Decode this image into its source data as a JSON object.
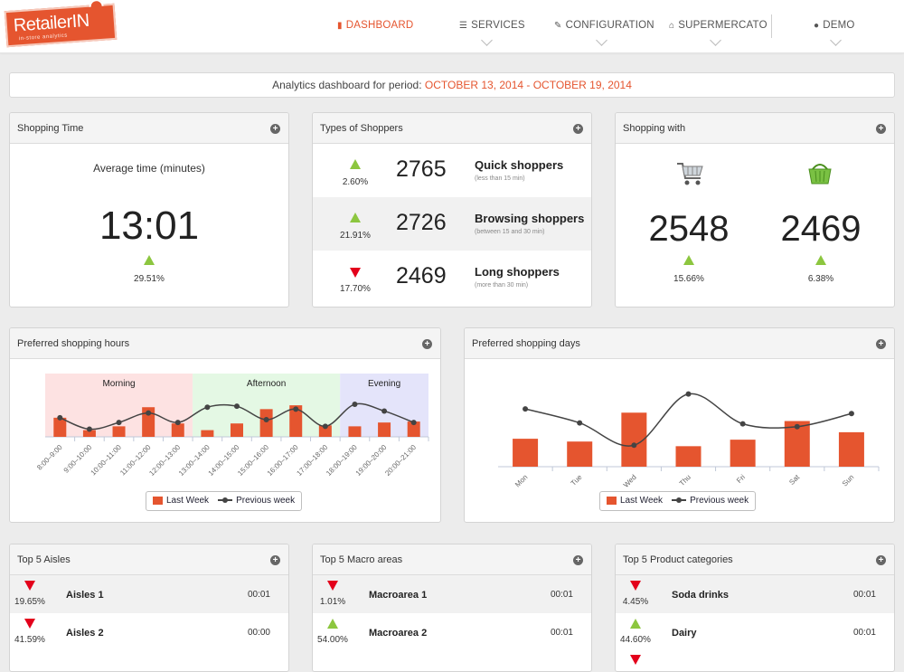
{
  "colors": {
    "accent": "#e5552f",
    "up": "#8cc63f",
    "down": "#e3001b",
    "line": "#444444"
  },
  "brand": {
    "name": "RetailerIN",
    "tagline": "in-store analytics"
  },
  "nav": {
    "dashboard": "DASHBOARD",
    "services": "SERVICES",
    "configuration": "CONFIGURATION",
    "store": "SUPERMERCATO",
    "user": "DEMO"
  },
  "period": {
    "label": "Analytics dashboard for period:",
    "dates": "OCTOBER 13, 2014 - OCTOBER 19, 2014"
  },
  "shopping_time": {
    "title": "Shopping Time",
    "label": "Average time (minutes)",
    "value": "13:01",
    "change": "29.51%",
    "trend": "up"
  },
  "shopper_types": {
    "title": "Types of Shoppers",
    "rows": [
      {
        "change": "2.60%",
        "trend": "up",
        "count": "2765",
        "name": "Quick shoppers",
        "desc": "(less than 15 min)"
      },
      {
        "change": "21.91%",
        "trend": "up",
        "count": "2726",
        "name": "Browsing shoppers",
        "desc": "(between 15 and 30 min)"
      },
      {
        "change": "17.70%",
        "trend": "down",
        "count": "2469",
        "name": "Long shoppers",
        "desc": "(more than 30 min)"
      }
    ]
  },
  "shopping_with": {
    "title": "Shopping with",
    "items": [
      {
        "icon": "shopping-cart-icon",
        "count": "2548",
        "change": "15.66%",
        "trend": "up"
      },
      {
        "icon": "shopping-basket-icon",
        "count": "2469",
        "change": "6.38%",
        "trend": "up"
      }
    ]
  },
  "hours_chart": {
    "title": "Preferred shopping hours",
    "legend": {
      "bars": "Last Week",
      "line": "Previous week"
    }
  },
  "days_chart": {
    "title": "Preferred shopping days",
    "legend": {
      "bars": "Last Week",
      "line": "Previous week"
    }
  },
  "chart_data": [
    {
      "type": "bar",
      "title": "Preferred shopping hours",
      "categories": [
        "8:00–9:00",
        "9:00–10:00",
        "10:00–11:00",
        "11:00–12:00",
        "12:00–13:00",
        "13:00–14:00",
        "14:00–15:00",
        "15:00–16:00",
        "16:00–17:00",
        "17:00–18:00",
        "18:00–19:00",
        "19:00–20:00",
        "20:00–21:00"
      ],
      "bands": [
        {
          "label": "Morning",
          "from": 0,
          "to": 5,
          "color": "#fde2e2"
        },
        {
          "label": "Afternoon",
          "from": 5,
          "to": 10,
          "color": "#e4f8e4"
        },
        {
          "label": "Evening",
          "from": 10,
          "to": 13,
          "color": "#e4e4fa"
        }
      ],
      "series": [
        {
          "name": "Last Week",
          "kind": "bar",
          "values": [
            20,
            7,
            11,
            31,
            14,
            7,
            14,
            29,
            33,
            12,
            11,
            15,
            16
          ]
        },
        {
          "name": "Previous week",
          "kind": "line",
          "values": [
            20,
            8,
            15,
            25,
            15,
            31,
            32,
            18,
            29,
            11,
            34,
            27,
            15
          ]
        }
      ],
      "ylim": [
        0,
        70
      ]
    },
    {
      "type": "bar",
      "title": "Preferred shopping days",
      "categories": [
        "Mon",
        "Tue",
        "Wed",
        "Thu",
        "Fri",
        "Sat",
        "Sun"
      ],
      "series": [
        {
          "name": "Last Week",
          "kind": "bar",
          "values": [
            30,
            27,
            58,
            22,
            29,
            49,
            37
          ]
        },
        {
          "name": "Previous week",
          "kind": "line",
          "values": [
            62,
            47,
            23,
            78,
            46,
            43,
            57
          ]
        }
      ],
      "ylim": [
        0,
        100
      ]
    }
  ],
  "top_aisles": {
    "title": "Top 5 Aisles",
    "rows": [
      {
        "change": "19.65%",
        "trend": "down",
        "name": "Aisles 1",
        "time": "00:01"
      },
      {
        "change": "41.59%",
        "trend": "down",
        "name": "Aisles 2",
        "time": "00:00"
      }
    ]
  },
  "top_macro": {
    "title": "Top 5 Macro areas",
    "rows": [
      {
        "change": "1.01%",
        "trend": "down",
        "name": "Macroarea 1",
        "time": "00:01"
      },
      {
        "change": "54.00%",
        "trend": "up",
        "name": "Macroarea 2",
        "time": "00:01"
      }
    ]
  },
  "top_categories": {
    "title": "Top 5 Product categories",
    "rows": [
      {
        "change": "4.45%",
        "trend": "down",
        "name": "Soda drinks",
        "time": "00:01"
      },
      {
        "change": "44.60%",
        "trend": "up",
        "name": "Dairy",
        "time": "00:01"
      }
    ]
  }
}
